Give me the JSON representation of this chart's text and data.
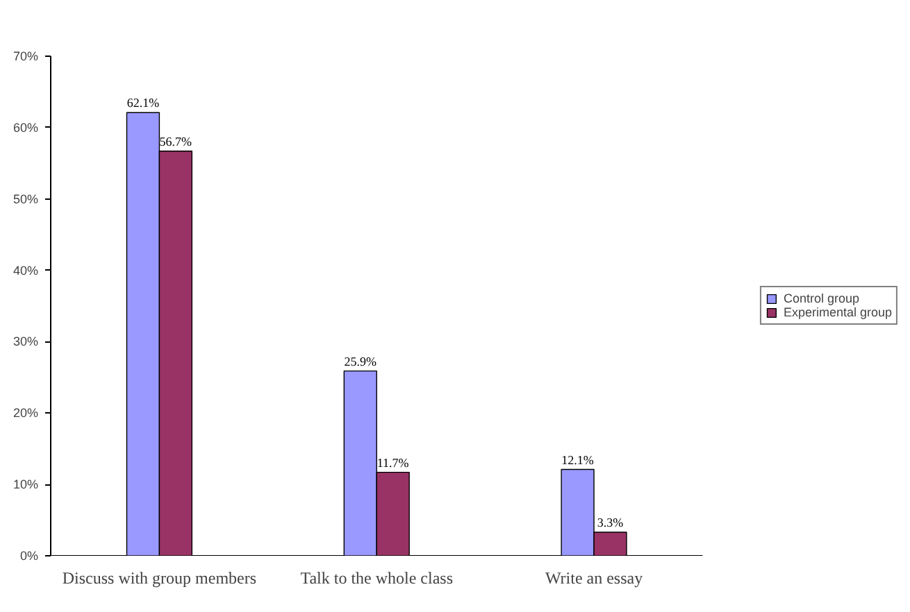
{
  "chart_data": {
    "type": "bar",
    "categories": [
      "Discuss with group members",
      "Talk to the whole class",
      "Write an essay"
    ],
    "series": [
      {
        "name": "Control group",
        "color": "#9999ff",
        "values": [
          62.1,
          25.9,
          12.1
        ],
        "value_labels": [
          "62.1%",
          "25.9%",
          "12.1%"
        ]
      },
      {
        "name": "Experimental group",
        "color": "#993366",
        "values": [
          56.7,
          11.7,
          3.3
        ],
        "value_labels": [
          "56.7%",
          "11.7%",
          "3.3%"
        ]
      }
    ],
    "ylim": [
      0,
      70
    ],
    "yticks": [
      {
        "value": 0,
        "label": "0%"
      },
      {
        "value": 10,
        "label": "10%"
      },
      {
        "value": 20,
        "label": "20%"
      },
      {
        "value": 30,
        "label": "30%"
      },
      {
        "value": 40,
        "label": "40%"
      },
      {
        "value": 50,
        "label": "50%"
      },
      {
        "value": 60,
        "label": "60%"
      },
      {
        "value": 70,
        "label": "70%"
      }
    ],
    "grid": false,
    "legend": "right"
  }
}
